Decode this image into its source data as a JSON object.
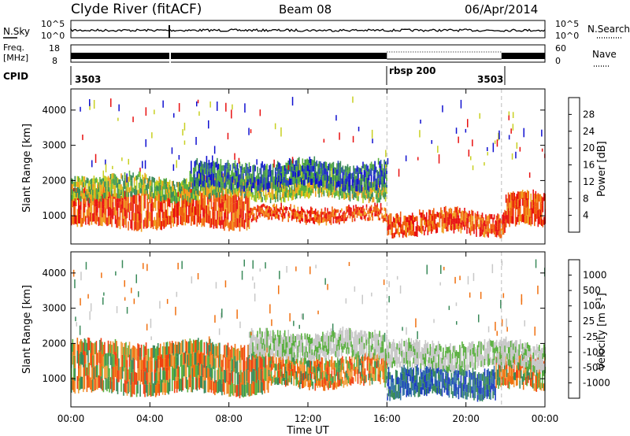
{
  "header": {
    "station": "Clyde River (fitACF)",
    "beam": "Beam 08",
    "date": "06/Apr/2014"
  },
  "status_panels": {
    "nsky_label": "N.Sky",
    "nsearch_label": "N.Search",
    "freq_label_line1": "Freq.",
    "freq_label_line2": "[MHz]",
    "nave_label": "Nave",
    "cpid_label": "CPID",
    "noise_ticks_left": [
      "10^5",
      "10^0"
    ],
    "noise_ticks_right": [
      "10^5",
      "10^0"
    ],
    "freq_ticks_left": [
      "18",
      "8"
    ],
    "nave_ticks_right": [
      "60",
      "0"
    ],
    "cpid_segments": [
      {
        "label": "3503",
        "start_hour": 0
      },
      {
        "label": "rbsp 200",
        "start_hour": 16
      },
      {
        "label": "3503",
        "start_hour": 21.8
      }
    ],
    "nsearch_dotted_span_hours": [
      16,
      21.8
    ]
  },
  "chart_data": [
    {
      "type": "heatmap",
      "name": "power",
      "title": "",
      "xlabel": "",
      "ylabel": "Slant Range [km]",
      "xlim_hours": [
        0,
        24
      ],
      "ylim_km": [
        200,
        4600
      ],
      "y_ticks": [
        1000,
        2000,
        3000,
        4000
      ],
      "colorbar_label": "Power [dB]",
      "colorbar_ticks": [
        "4",
        "8",
        "12",
        "16",
        "20",
        "24",
        "28"
      ],
      "colorbar_colors": [
        "#1010d0",
        "#2a4ab8",
        "#3a8a5a",
        "#5ab040",
        "#c8d020",
        "#f0a020",
        "#f06010",
        "#e81010"
      ],
      "dashed_markers_hours": [
        16,
        21.8
      ],
      "echo_bands": [
        {
          "t_start": 0,
          "t_end": 9,
          "r_low": 700,
          "r_high": 1700,
          "level": "high"
        },
        {
          "t_start": 9,
          "t_end": 16,
          "r_low": 850,
          "r_high": 1200,
          "level": "high"
        },
        {
          "t_start": 16,
          "t_end": 22,
          "r_low": 500,
          "r_high": 1100,
          "level": "high"
        },
        {
          "t_start": 22,
          "t_end": 24,
          "r_low": 700,
          "r_high": 1600,
          "level": "high"
        },
        {
          "t_start": 0,
          "t_end": 16,
          "r_low": 1500,
          "r_high": 2100,
          "level": "mid"
        },
        {
          "t_start": 6,
          "t_end": 16,
          "r_low": 1800,
          "r_high": 2500,
          "level": "low"
        }
      ]
    },
    {
      "type": "heatmap",
      "name": "velocity",
      "title": "",
      "xlabel": "Time UT",
      "ylabel": "Slant Range [km]",
      "xlim_hours": [
        0,
        24
      ],
      "ylim_km": [
        200,
        4600
      ],
      "y_ticks": [
        1000,
        2000,
        3000,
        4000
      ],
      "x_ticks": [
        "00:00",
        "04:00",
        "08:00",
        "12:00",
        "16:00",
        "20:00",
        "00:00"
      ],
      "colorbar_label": "Velocity [m s-1]",
      "colorbar_ticks": [
        "1000",
        "500",
        "100",
        "25",
        "-25",
        "-100",
        "-500",
        "-1000"
      ],
      "colorbar_colors": [
        "#2040c0",
        "#3878a8",
        "#3a8a5a",
        "#5ab040",
        "#c8c8c8",
        "#f0a040",
        "#f07010",
        "#f04010",
        "#e81010"
      ],
      "dashed_markers_hours": [
        16,
        21.8
      ],
      "echo_bands": [
        {
          "t_start": 0,
          "t_end": 10,
          "r_low": 600,
          "r_high": 2000,
          "level": "neg"
        },
        {
          "t_start": 10,
          "t_end": 16,
          "r_low": 800,
          "r_high": 1600,
          "level": "neg"
        },
        {
          "t_start": 9,
          "t_end": 16,
          "r_low": 1600,
          "r_high": 2300,
          "level": "zero"
        },
        {
          "t_start": 16,
          "t_end": 21.5,
          "r_low": 500,
          "r_high": 1300,
          "level": "pos"
        },
        {
          "t_start": 21.5,
          "t_end": 24,
          "r_low": 700,
          "r_high": 1600,
          "level": "neg"
        },
        {
          "t_start": 16,
          "t_end": 24,
          "r_low": 1300,
          "r_high": 2000,
          "level": "zero"
        }
      ]
    }
  ]
}
